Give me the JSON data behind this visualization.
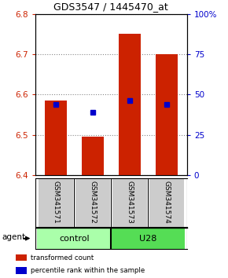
{
  "title": "GDS3547 / 1445470_at",
  "samples": [
    "GSM341571",
    "GSM341572",
    "GSM341573",
    "GSM341574"
  ],
  "bar_bottoms": [
    6.4,
    6.4,
    6.4,
    6.4
  ],
  "bar_tops": [
    6.585,
    6.495,
    6.75,
    6.7
  ],
  "blue_markers": [
    6.575,
    6.555,
    6.585,
    6.575
  ],
  "bar_color": "#cc2200",
  "blue_color": "#0000cc",
  "ylim_left": [
    6.4,
    6.8
  ],
  "ylim_right": [
    0,
    100
  ],
  "yticks_left": [
    6.4,
    6.5,
    6.6,
    6.7,
    6.8
  ],
  "yticks_right": [
    0,
    25,
    50,
    75,
    100
  ],
  "ytick_labels_right": [
    "0",
    "25",
    "50",
    "75",
    "100%"
  ],
  "groups": [
    {
      "label": "control",
      "samples": [
        0,
        1
      ],
      "color": "#aaffaa"
    },
    {
      "label": "U28",
      "samples": [
        2,
        3
      ],
      "color": "#55dd55"
    }
  ],
  "agent_label": "agent",
  "legend_items": [
    {
      "label": "transformed count",
      "color": "#cc2200"
    },
    {
      "label": "percentile rank within the sample",
      "color": "#0000cc"
    }
  ],
  "grid_color": "#888888",
  "background_color": "#ffffff",
  "sample_box_color": "#cccccc",
  "bar_width": 0.6
}
